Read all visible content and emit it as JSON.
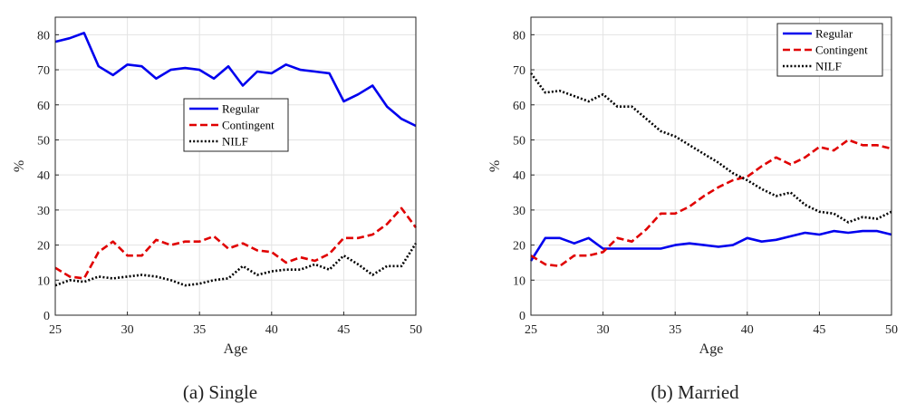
{
  "chart_data": [
    {
      "type": "line",
      "caption": "(a) Single",
      "xlabel": "Age",
      "ylabel": "%",
      "xlim": [
        25,
        50
      ],
      "ylim": [
        0,
        85
      ],
      "xticks": [
        25,
        30,
        35,
        40,
        45,
        50
      ],
      "yticks": [
        0,
        10,
        20,
        30,
        40,
        50,
        60,
        70,
        80
      ],
      "grid": true,
      "legend_position": "center-right",
      "x": [
        25,
        26,
        27,
        28,
        29,
        30,
        31,
        32,
        33,
        34,
        35,
        36,
        37,
        38,
        39,
        40,
        41,
        42,
        43,
        44,
        45,
        46,
        47,
        48,
        49,
        50
      ],
      "series": [
        {
          "name": "Regular",
          "color": "#0000ee",
          "style": "solid",
          "values": [
            78,
            79,
            80.5,
            71,
            68.5,
            71.5,
            71,
            67.5,
            70,
            70.5,
            70,
            67.5,
            71,
            65.5,
            69.5,
            69,
            71.5,
            70,
            69.5,
            69,
            61,
            63,
            65.5,
            59.5,
            56,
            54
          ]
        },
        {
          "name": "Contingent",
          "color": "#e00000",
          "style": "dashed",
          "values": [
            13.5,
            11,
            10.5,
            18,
            21,
            17,
            17,
            21.5,
            20,
            21,
            21,
            22.5,
            19,
            20.5,
            18.5,
            18,
            15,
            16.5,
            15.5,
            17.5,
            22,
            22,
            23,
            26,
            30.5,
            25
          ]
        },
        {
          "name": "NILF",
          "color": "#000000",
          "style": "dotted",
          "values": [
            8.5,
            10,
            9.5,
            11,
            10.5,
            11,
            11.5,
            11,
            10,
            8.5,
            9,
            10,
            10.5,
            14,
            11.5,
            12.5,
            13,
            13,
            14.5,
            13,
            17,
            14.5,
            11.5,
            14,
            14,
            20.5
          ]
        }
      ]
    },
    {
      "type": "line",
      "caption": "(b) Married",
      "xlabel": "Age",
      "ylabel": "%",
      "xlim": [
        25,
        50
      ],
      "ylim": [
        0,
        85
      ],
      "xticks": [
        25,
        30,
        35,
        40,
        45,
        50
      ],
      "yticks": [
        0,
        10,
        20,
        30,
        40,
        50,
        60,
        70,
        80
      ],
      "grid": true,
      "legend_position": "top-right",
      "x": [
        25,
        26,
        27,
        28,
        29,
        30,
        31,
        32,
        33,
        34,
        35,
        36,
        37,
        38,
        39,
        40,
        41,
        42,
        43,
        44,
        45,
        46,
        47,
        48,
        49,
        50
      ],
      "series": [
        {
          "name": "Regular",
          "color": "#0000ee",
          "style": "solid",
          "values": [
            15.5,
            22,
            22,
            20.5,
            22,
            19,
            19,
            19,
            19,
            19,
            20,
            20.5,
            20,
            19.5,
            20,
            22,
            21,
            21.5,
            22.5,
            23.5,
            23,
            24,
            23.5,
            24,
            24,
            23
          ]
        },
        {
          "name": "Contingent",
          "color": "#e00000",
          "style": "dashed",
          "values": [
            17,
            14.5,
            14,
            17,
            17,
            18,
            22,
            21,
            24.5,
            29,
            29,
            31,
            34,
            36.5,
            38.5,
            39.5,
            42.5,
            45,
            43,
            45,
            48,
            47,
            50,
            48.5,
            48.5,
            47.5
          ]
        },
        {
          "name": "NILF",
          "color": "#000000",
          "style": "dotted",
          "values": [
            69,
            63.5,
            64,
            62.5,
            61,
            63,
            59.5,
            59.5,
            56,
            52.5,
            51,
            48.5,
            46,
            43.5,
            40.5,
            38.5,
            36,
            34,
            35,
            31.5,
            29.5,
            29,
            26.5,
            28,
            27.5,
            29.5
          ]
        }
      ]
    }
  ]
}
